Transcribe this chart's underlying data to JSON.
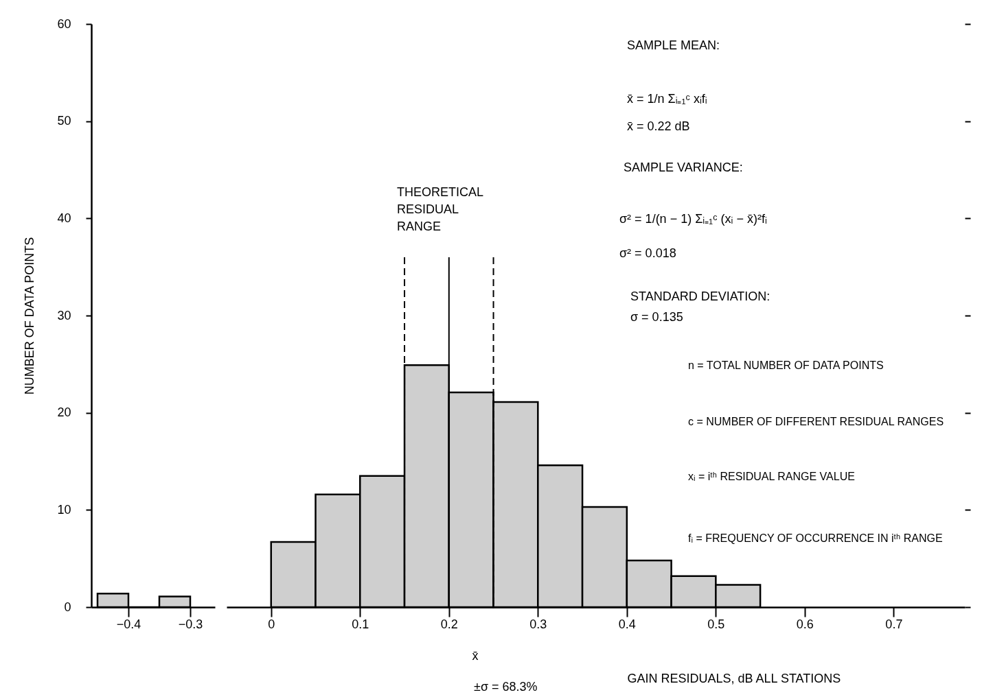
{
  "chart_data": [
    {
      "type": "histogram",
      "ylabel": "NUMBER OF DATA POINTS",
      "bins": [
        -0.45,
        -0.4,
        -0.35,
        -0.3
      ],
      "values": [
        1.4,
        0,
        1.1
      ],
      "color": "#cfcfcf",
      "xlim": [
        -0.46,
        -0.26
      ],
      "xticks": [
        -0.4,
        -0.3
      ],
      "ylim": [
        0,
        60
      ],
      "yticks": [
        0,
        10,
        20,
        30,
        40,
        50,
        60
      ],
      "grid": false
    },
    {
      "type": "histogram",
      "xlabel": "GAIN RESIDUALS, dB ALL STATIONS",
      "bins": [
        0,
        0.05,
        0.1,
        0.15,
        0.2,
        0.25,
        0.3,
        0.35,
        0.4,
        0.45,
        0.5,
        0.55
      ],
      "values": [
        6.7,
        11.6,
        13.5,
        24.9,
        22.1,
        21.1,
        14.6,
        10.3,
        4.8,
        3.2,
        2.3
      ],
      "color": "#cfcfcf",
      "xlim": [
        -0.05,
        0.78
      ],
      "xticks": [
        0,
        0.1,
        0.2,
        0.3,
        0.4,
        0.5,
        0.6,
        0.7
      ],
      "ylim": [
        0,
        60
      ],
      "yticks": [
        0,
        10,
        20,
        30,
        40,
        50,
        60
      ],
      "tick_labels": "x",
      "grid": false,
      "ref_lines": [
        {
          "axis": "x",
          "value": 0.15,
          "line_style": "dashed"
        },
        {
          "axis": "x",
          "value": 0.2,
          "line_style": "solid"
        },
        {
          "axis": "x",
          "value": 0.25,
          "line_style": "dashed"
        }
      ],
      "annotations": [
        "SAMPLE MEAN:",
        "x̄ = 1/n Σᵢ₌₁ᶜ xᵢfᵢ",
        "x̄ = 0.22 dB",
        "SAMPLE VARIANCE:",
        "σ² = 1/(n − 1) Σᵢ₌₁ᶜ (xᵢ − x̄)²fᵢ",
        "σ² = 0.018",
        "STANDARD DEVIATION:",
        "σ = 0.135",
        "n = TOTAL NUMBER OF DATA POINTS",
        "c = NUMBER OF DIFFERENT RESIDUAL RANGES",
        "xᵢ = iᵗʰ RESIDUAL RANGE VALUE",
        "fᵢ = FREQUENCY OF OCCURRENCE IN iᵗʰ RANGE",
        "THEORETICAL RESIDUAL RANGE",
        "x̄",
        "±σ = 68.3%"
      ]
    }
  ]
}
